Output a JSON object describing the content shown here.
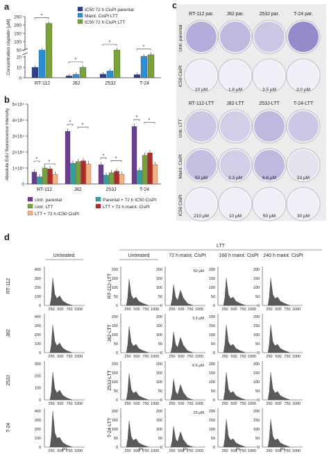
{
  "panel_a": {
    "label": "a",
    "ylabel": "Concentration cisplatin [µM]",
    "yticks_upper": [
      "250",
      "200",
      "150",
      "100",
      "50"
    ],
    "yticks_lower": [
      "20",
      "10",
      "0"
    ],
    "legend": [
      "IC50 72 h CisPt parental",
      "Maint. CisPt LTT",
      "IC50 72 h CisPt LTT"
    ],
    "sig": "*",
    "colors": {
      "parental": "#2e3f8f",
      "maint": "#2a8fd6",
      "ltt": "#7aa23a"
    }
  },
  "panel_b": {
    "label": "b",
    "ylabel": "Absolute EdU fluorescence intensity",
    "yticks": [
      "5×10⁴",
      "4×10⁴",
      "3×10⁴",
      "2×10⁴",
      "1×10⁴",
      "0"
    ],
    "legend": [
      "Untr. parental",
      "Parental + 72 h IC50 CisPt",
      "Untr. LTT",
      "LTT + 72 h maint. CisPt",
      "LTT + 72 h IC50 CisPt"
    ],
    "sig": "*",
    "colors": [
      "#6a3d8f",
      "#2fa0a0",
      "#7aa23a",
      "#b02a2a",
      "#f4b183"
    ]
  },
  "panel_c": {
    "label": "c",
    "top_headers": [
      "RT-112 par.",
      "J82 par.",
      "253J par.",
      "T-24 par."
    ],
    "top_rows": [
      "Untr. parental",
      "IC50 CisPt"
    ],
    "top_conc": [
      "10 µM",
      "1.8 µM",
      "3.5 µM",
      "3.0 µM"
    ],
    "bot_headers": [
      "RT-112-LTT",
      "J82-LTT",
      "253J-LTT",
      "T-24-LTT"
    ],
    "bot_rows": [
      "Untr. LTT",
      "Maint. CisPt",
      "IC50 CisPt"
    ],
    "bot_maint_conc": [
      "50 µM",
      "3.3 µM",
      "6.6 µM",
      "23 µM"
    ],
    "bot_ic50_conc": [
      "210 µM",
      "10 µM",
      "50 µM",
      "30 µM"
    ]
  },
  "panel_d": {
    "label": "d",
    "col_untreated": "Untreated",
    "ltt_label": "LTT",
    "ltt_cols": [
      "Untreated",
      "72 h maint. CisPt",
      "168 h maint. CisPt",
      "240 h maint. CisPt"
    ],
    "rows_parental": [
      "RT-112",
      "J82",
      "253J",
      "T-24"
    ],
    "rows_ltt": [
      "RT-112-LTT",
      "J82-LTT",
      "253J-LTT",
      "T-24-LTT"
    ],
    "conc": [
      "50 µM",
      "3.3 µM",
      "6.6 µM",
      "23 µM"
    ],
    "xticks": [
      "250",
      "500",
      "750",
      "1000"
    ],
    "xlabel": "PI",
    "yticks": [
      "200",
      "150",
      "100",
      "50",
      "0"
    ],
    "yticks_j82_par": [
      "400",
      "300",
      "200",
      "100",
      "0"
    ],
    "yticks_253j_par": [
      "300",
      "200",
      "100",
      "0"
    ],
    "yticks_t24_par": [
      "400",
      "300",
      "200",
      "100",
      "0"
    ]
  },
  "chart_data": [
    {
      "type": "bar",
      "panel": "a",
      "categories": [
        "RT-112",
        "J82",
        "253J",
        "T-24"
      ],
      "ylabel": "Concentration cisplatin [µM]",
      "series": [
        {
          "name": "IC50 72 h CisPt parental",
          "values": [
            10,
            1.8,
            3.5,
            3.0
          ]
        },
        {
          "name": "Maint. CisPt LTT",
          "values": [
            50,
            3.3,
            6.6,
            23
          ]
        },
        {
          "name": "IC50 72 h CisPt LTT",
          "values": [
            210,
            10,
            50,
            30
          ]
        }
      ],
      "axis_break": [
        20,
        50
      ],
      "ylim": [
        0,
        250
      ]
    },
    {
      "type": "bar",
      "panel": "b",
      "categories": [
        "RT-112",
        "J82",
        "253J",
        "T-24"
      ],
      "ylabel": "Absolute EdU fluorescence intensity",
      "ylim": [
        0,
        50000
      ],
      "series": [
        {
          "name": "Untr. parental",
          "values": [
            7500,
            33000,
            12000,
            36000
          ]
        },
        {
          "name": "Parental + 72 h IC50 CisPt",
          "values": [
            4500,
            13000,
            5500,
            8500
          ]
        },
        {
          "name": "Untr. LTT",
          "values": [
            10000,
            14000,
            7000,
            18000
          ]
        },
        {
          "name": "LTT + 72 h maint. CisPt",
          "values": [
            9500,
            14500,
            8000,
            19500
          ]
        },
        {
          "name": "LTT + 72 h IC50 CisPt",
          "values": [
            6000,
            12500,
            6000,
            12000
          ]
        }
      ]
    }
  ]
}
